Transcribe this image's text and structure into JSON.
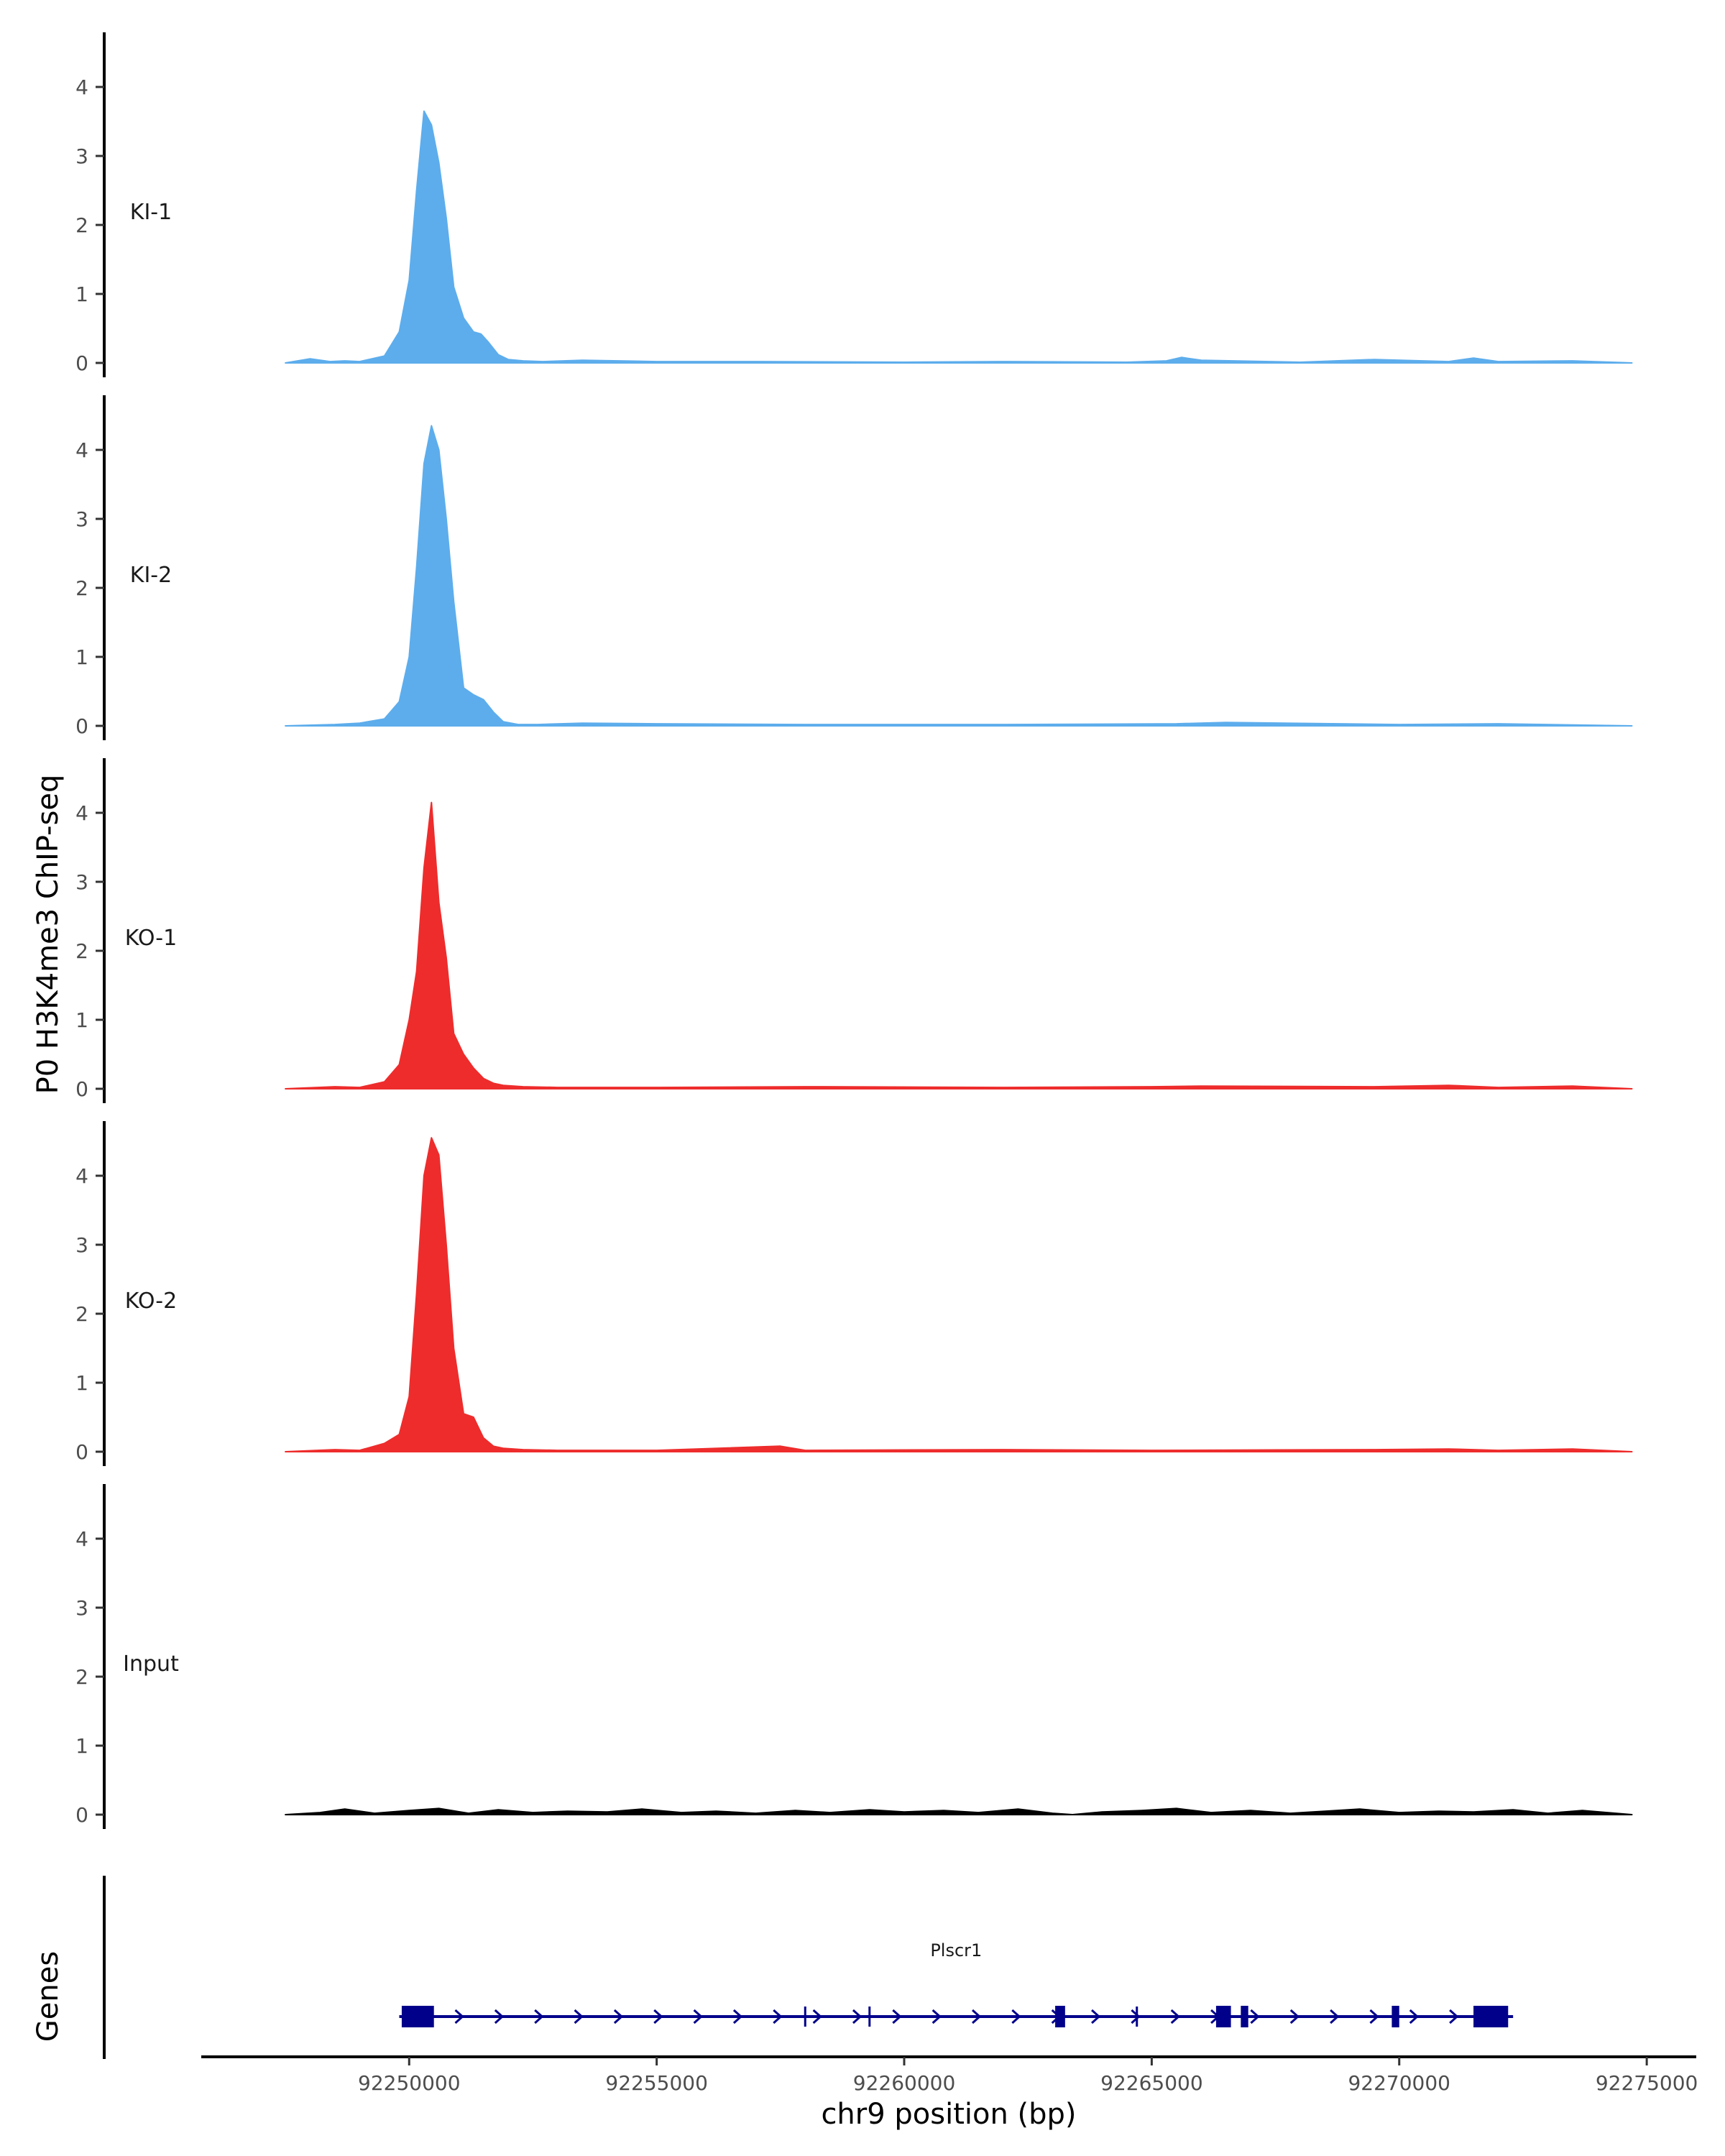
{
  "chart_data": {
    "type": "area",
    "title": "",
    "ylabel": "P0 H3K4me3 ChIP-seq",
    "xlabel": "chr9 position (bp)",
    "genes_label": "Genes",
    "ylim": [
      0,
      4.75
    ],
    "xlim": [
      92245800,
      92276000
    ],
    "y_ticks": [
      0,
      1,
      2,
      3,
      4
    ],
    "x_ticks": [
      92250000,
      92255000,
      92260000,
      92265000,
      92270000,
      92275000
    ],
    "x_tick_labels": [
      "92250000",
      "92255000",
      "92260000",
      "92265000",
      "92270000",
      "92275000"
    ],
    "grid": false,
    "colors": {
      "KI": "#5DADEC",
      "KO": "#EE2C2C",
      "Input": "#000000",
      "gene": "#00008B"
    },
    "tracks": [
      {
        "name": "KI-1",
        "color": "#5DADEC",
        "x": [
          92247500,
          92248000,
          92248400,
          92248700,
          92249000,
          92249500,
          92249800,
          92250000,
          92250150,
          92250300,
          92250450,
          92250600,
          92250750,
          92250900,
          92251100,
          92251300,
          92251450,
          92251600,
          92251800,
          92252000,
          92252300,
          92252700,
          92253500,
          92255000,
          92257000,
          92260000,
          92262000,
          92264500,
          92265300,
          92265600,
          92266000,
          92268000,
          92269500,
          92271000,
          92271500,
          92272000,
          92273500,
          92274700
        ],
        "y": [
          0,
          0.06,
          0.02,
          0.03,
          0.02,
          0.1,
          0.45,
          1.2,
          2.5,
          3.65,
          3.45,
          2.9,
          2.1,
          1.1,
          0.65,
          0.45,
          0.42,
          0.3,
          0.12,
          0.05,
          0.03,
          0.02,
          0.04,
          0.02,
          0.02,
          0.01,
          0.02,
          0.01,
          0.03,
          0.08,
          0.04,
          0.01,
          0.05,
          0.02,
          0.07,
          0.02,
          0.03,
          0
        ]
      },
      {
        "name": "KI-2",
        "color": "#5DADEC",
        "x": [
          92247500,
          92248500,
          92249000,
          92249500,
          92249800,
          92250000,
          92250150,
          92250300,
          92250450,
          92250600,
          92250750,
          92250900,
          92251100,
          92251300,
          92251500,
          92251700,
          92251900,
          92252200,
          92252600,
          92253500,
          92255000,
          92258000,
          92262000,
          92265500,
          92266500,
          92270000,
          92272000,
          92274700
        ],
        "y": [
          0,
          0.02,
          0.04,
          0.1,
          0.35,
          1.0,
          2.3,
          3.8,
          4.35,
          4.0,
          3.0,
          1.8,
          0.55,
          0.45,
          0.38,
          0.2,
          0.06,
          0.02,
          0.02,
          0.04,
          0.03,
          0.02,
          0.02,
          0.03,
          0.05,
          0.02,
          0.03,
          0
        ]
      },
      {
        "name": "KO-1",
        "color": "#EE2C2C",
        "x": [
          92247500,
          92248500,
          92249000,
          92249500,
          92249800,
          92250000,
          92250150,
          92250300,
          92250450,
          92250600,
          92250750,
          92250900,
          92251100,
          92251300,
          92251500,
          92251700,
          92251900,
          92252300,
          92253000,
          92255000,
          92258000,
          92262000,
          92265000,
          92266000,
          92269500,
          92271000,
          92272000,
          92273500,
          92274700
        ],
        "y": [
          0,
          0.03,
          0.02,
          0.1,
          0.35,
          1.0,
          1.7,
          3.2,
          4.15,
          2.7,
          1.9,
          0.8,
          0.5,
          0.3,
          0.15,
          0.08,
          0.05,
          0.03,
          0.02,
          0.02,
          0.03,
          0.02,
          0.03,
          0.04,
          0.03,
          0.05,
          0.02,
          0.04,
          0
        ]
      },
      {
        "name": "KO-2",
        "color": "#EE2C2C",
        "x": [
          92247500,
          92248500,
          92249000,
          92249500,
          92249800,
          92250000,
          92250150,
          92250300,
          92250450,
          92250600,
          92250750,
          92250900,
          92251100,
          92251300,
          92251500,
          92251700,
          92251900,
          92252300,
          92253000,
          92255000,
          92257500,
          92258000,
          92262000,
          92265000,
          92269500,
          92271000,
          92272000,
          92273500,
          92274700
        ],
        "y": [
          0,
          0.03,
          0.02,
          0.12,
          0.25,
          0.8,
          2.3,
          4.0,
          4.55,
          4.3,
          3.0,
          1.5,
          0.55,
          0.5,
          0.2,
          0.08,
          0.05,
          0.03,
          0.02,
          0.02,
          0.08,
          0.02,
          0.03,
          0.02,
          0.03,
          0.04,
          0.02,
          0.04,
          0
        ]
      },
      {
        "name": "Input",
        "color": "#000000",
        "x": [
          92247500,
          92248200,
          92248700,
          92249300,
          92250000,
          92250600,
          92251200,
          92251800,
          92252500,
          92253200,
          92254000,
          92254700,
          92255500,
          92256200,
          92257000,
          92257800,
          92258500,
          92259300,
          92260000,
          92260800,
          92261500,
          92262300,
          92263000,
          92263400,
          92264000,
          92264800,
          92265500,
          92266200,
          92267000,
          92267800,
          92268500,
          92269200,
          92270000,
          92270800,
          92271500,
          92272300,
          92273000,
          92273700,
          92274700
        ],
        "y": [
          0,
          0.03,
          0.08,
          0.02,
          0.06,
          0.09,
          0.02,
          0.07,
          0.03,
          0.05,
          0.04,
          0.08,
          0.03,
          0.05,
          0.02,
          0.06,
          0.03,
          0.07,
          0.04,
          0.06,
          0.03,
          0.08,
          0.02,
          0.0,
          0.04,
          0.06,
          0.09,
          0.03,
          0.06,
          0.02,
          0.05,
          0.08,
          0.03,
          0.05,
          0.04,
          0.07,
          0.02,
          0.06,
          0
        ]
      }
    ],
    "gene": {
      "name": "Plscr1",
      "strand": "+",
      "start": 92249800,
      "end": 92272300,
      "exons": [
        [
          92249850,
          92250500
        ],
        [
          92263050,
          92263250
        ],
        [
          92266300,
          92266600
        ],
        [
          92266800,
          92266950
        ],
        [
          92269850,
          92270000
        ],
        [
          92271500,
          92272200
        ]
      ],
      "thin_marks": [
        92258000,
        92259300,
        92264700
      ]
    }
  }
}
